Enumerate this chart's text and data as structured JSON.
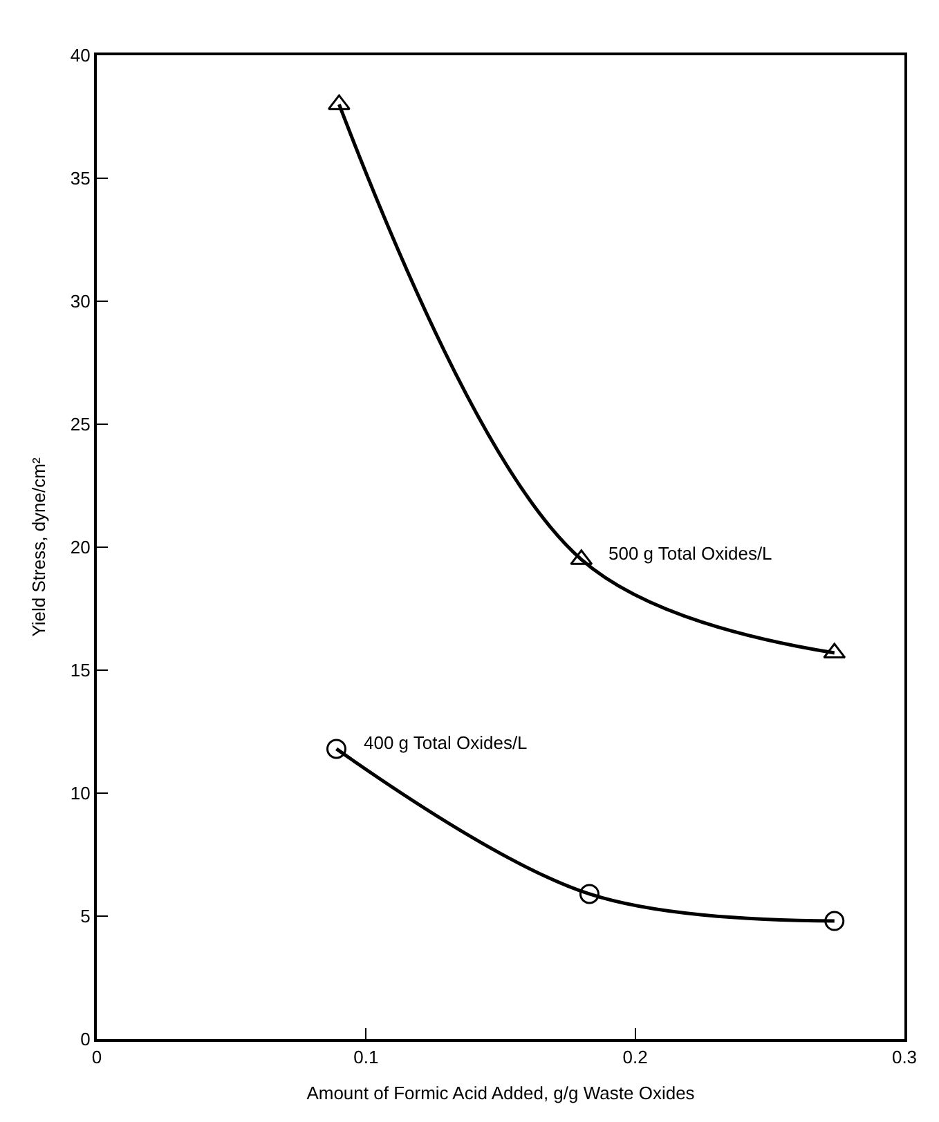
{
  "chart_data": {
    "type": "line",
    "xlabel": "Amount of Formic Acid Added, g/g Waste Oxides",
    "ylabel": "Yield Stress, dyne/cm²",
    "xlim": [
      0,
      0.3
    ],
    "xticks": [
      0,
      0.1,
      0.2,
      0.3
    ],
    "ylim": [
      0,
      40
    ],
    "yticks": [
      0,
      5,
      10,
      15,
      20,
      25,
      30,
      35,
      40
    ],
    "legend": false,
    "line_style": "solid",
    "series": [
      {
        "name": "500 g Total Oxides/L",
        "color": "#000000",
        "marker": "triangle",
        "x": [
          0.09,
          0.18,
          0.274
        ],
        "values": [
          38,
          19.5,
          15.7
        ]
      },
      {
        "name": "400 g Total Oxides/L",
        "color": "#000000",
        "marker": "circle",
        "x": [
          0.089,
          0.183,
          0.274
        ],
        "values": [
          11.8,
          5.9,
          4.8
        ]
      }
    ]
  }
}
